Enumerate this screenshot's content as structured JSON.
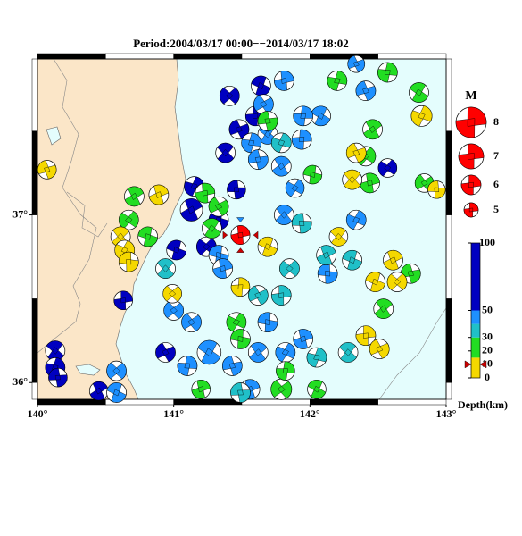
{
  "title": "Period:2004/03/17 00:00−−2014/03/17 18:02",
  "xlim": [
    140,
    143
  ],
  "ylim": [
    35.9,
    37.93
  ],
  "xticks": [
    {
      "value": 140,
      "label": "140°"
    },
    {
      "value": 141,
      "label": "141°"
    },
    {
      "value": 142,
      "label": "142°"
    },
    {
      "value": 143,
      "label": "143°"
    }
  ],
  "yticks": [
    {
      "value": 36,
      "label": "36°"
    },
    {
      "value": 37,
      "label": "37°"
    }
  ],
  "land_color": "#fbe6c8",
  "sea_color": "#e4fdfd",
  "legend": {
    "title": "M",
    "mags": [
      8,
      7,
      6,
      5
    ],
    "color": "#ff0000"
  },
  "depth_scale": {
    "label": "Depth(km)",
    "lim": [
      0,
      100
    ],
    "ticks": [
      0,
      10,
      20,
      30,
      50,
      100
    ],
    "bands": [
      {
        "from": 0,
        "to": 15,
        "color": "#f5d800"
      },
      {
        "from": 15,
        "to": 30,
        "color": "#22dd22"
      },
      {
        "from": 30,
        "to": 40,
        "color": "#20c0c8"
      },
      {
        "from": 40,
        "to": 50,
        "color": "#1e90ff"
      },
      {
        "from": 50,
        "to": 100,
        "color": "#0000c0"
      }
    ]
  },
  "main_event": {
    "lon": 141.49,
    "lat": 36.88,
    "depth": 10,
    "mag": 6.2,
    "color": "#ff0000"
  },
  "events": [
    {
      "lon": 141.41,
      "lat": 37.71,
      "depth": 65,
      "mag": 6
    },
    {
      "lon": 141.64,
      "lat": 37.77,
      "depth": 65,
      "mag": 6
    },
    {
      "lon": 141.6,
      "lat": 37.59,
      "depth": 65,
      "mag": 6
    },
    {
      "lon": 141.48,
      "lat": 37.51,
      "depth": 65,
      "mag": 6
    },
    {
      "lon": 141.38,
      "lat": 37.37,
      "depth": 65,
      "mag": 6
    },
    {
      "lon": 141.15,
      "lat": 37.17,
      "depth": 65,
      "mag": 6
    },
    {
      "lon": 141.46,
      "lat": 37.15,
      "depth": 65,
      "mag": 5.8
    },
    {
      "lon": 141.13,
      "lat": 37.03,
      "depth": 65,
      "mag": 6.5
    },
    {
      "lon": 141.24,
      "lat": 36.81,
      "depth": 65,
      "mag": 6
    },
    {
      "lon": 141.02,
      "lat": 36.79,
      "depth": 65,
      "mag": 6
    },
    {
      "lon": 140.63,
      "lat": 36.49,
      "depth": 65,
      "mag": 5.8
    },
    {
      "lon": 140.94,
      "lat": 36.18,
      "depth": 65,
      "mag": 6
    },
    {
      "lon": 140.13,
      "lat": 36.19,
      "depth": 65,
      "mag": 6
    },
    {
      "lon": 140.13,
      "lat": 36.09,
      "depth": 65,
      "mag": 6
    },
    {
      "lon": 140.15,
      "lat": 36.03,
      "depth": 65,
      "mag": 5.8
    },
    {
      "lon": 140.45,
      "lat": 35.95,
      "depth": 65,
      "mag": 5.8
    },
    {
      "lon": 142.57,
      "lat": 37.28,
      "depth": 65,
      "mag": 5.8
    },
    {
      "lon": 141.33,
      "lat": 36.97,
      "depth": 65,
      "mag": 6
    },
    {
      "lon": 141.81,
      "lat": 37.8,
      "depth": 45,
      "mag": 6
    },
    {
      "lon": 141.66,
      "lat": 37.66,
      "depth": 45,
      "mag": 6
    },
    {
      "lon": 141.69,
      "lat": 37.48,
      "depth": 45,
      "mag": 6
    },
    {
      "lon": 141.57,
      "lat": 37.43,
      "depth": 45,
      "mag": 6
    },
    {
      "lon": 141.62,
      "lat": 37.33,
      "depth": 45,
      "mag": 6
    },
    {
      "lon": 141.79,
      "lat": 37.29,
      "depth": 45,
      "mag": 6
    },
    {
      "lon": 141.89,
      "lat": 37.16,
      "depth": 45,
      "mag": 5.8
    },
    {
      "lon": 141.33,
      "lat": 36.76,
      "depth": 45,
      "mag": 6
    },
    {
      "lon": 141.36,
      "lat": 36.68,
      "depth": 45,
      "mag": 6
    },
    {
      "lon": 141.13,
      "lat": 36.36,
      "depth": 45,
      "mag": 6
    },
    {
      "lon": 141.26,
      "lat": 36.18,
      "depth": 45,
      "mag": 6.8
    },
    {
      "lon": 141.1,
      "lat": 36.1,
      "depth": 45,
      "mag": 6
    },
    {
      "lon": 141.43,
      "lat": 36.1,
      "depth": 45,
      "mag": 6
    },
    {
      "lon": 141.62,
      "lat": 36.18,
      "depth": 45,
      "mag": 6
    },
    {
      "lon": 141.82,
      "lat": 36.18,
      "depth": 45,
      "mag": 6
    },
    {
      "lon": 141.69,
      "lat": 36.36,
      "depth": 45,
      "mag": 6
    },
    {
      "lon": 141.95,
      "lat": 36.26,
      "depth": 45,
      "mag": 6
    },
    {
      "lon": 141.0,
      "lat": 36.43,
      "depth": 45,
      "mag": 6
    },
    {
      "lon": 142.08,
      "lat": 37.59,
      "depth": 45,
      "mag": 6
    },
    {
      "lon": 141.95,
      "lat": 37.59,
      "depth": 45,
      "mag": 6
    },
    {
      "lon": 142.41,
      "lat": 37.74,
      "depth": 45,
      "mag": 6
    },
    {
      "lon": 141.81,
      "lat": 37.0,
      "depth": 45,
      "mag": 6
    },
    {
      "lon": 142.34,
      "lat": 36.97,
      "depth": 45,
      "mag": 6
    },
    {
      "lon": 142.13,
      "lat": 36.65,
      "depth": 45,
      "mag": 6
    },
    {
      "lon": 141.56,
      "lat": 35.96,
      "depth": 45,
      "mag": 6
    },
    {
      "lon": 140.58,
      "lat": 36.07,
      "depth": 45,
      "mag": 6
    },
    {
      "lon": 140.58,
      "lat": 35.94,
      "depth": 45,
      "mag": 6
    },
    {
      "lon": 141.94,
      "lat": 37.45,
      "depth": 45,
      "mag": 6
    },
    {
      "lon": 142.34,
      "lat": 37.9,
      "depth": 45,
      "mag": 5.5
    },
    {
      "lon": 140.94,
      "lat": 36.68,
      "depth": 35,
      "mag": 6
    },
    {
      "lon": 141.79,
      "lat": 37.43,
      "depth": 35,
      "mag": 6
    },
    {
      "lon": 141.94,
      "lat": 36.95,
      "depth": 35,
      "mag": 6
    },
    {
      "lon": 142.12,
      "lat": 36.76,
      "depth": 35,
      "mag": 6
    },
    {
      "lon": 141.85,
      "lat": 36.68,
      "depth": 35,
      "mag": 6
    },
    {
      "lon": 142.31,
      "lat": 36.73,
      "depth": 35,
      "mag": 6
    },
    {
      "lon": 141.79,
      "lat": 36.52,
      "depth": 35,
      "mag": 6
    },
    {
      "lon": 141.62,
      "lat": 36.52,
      "depth": 35,
      "mag": 6
    },
    {
      "lon": 142.28,
      "lat": 36.18,
      "depth": 35,
      "mag": 6
    },
    {
      "lon": 142.05,
      "lat": 36.15,
      "depth": 35,
      "mag": 6
    },
    {
      "lon": 141.49,
      "lat": 35.94,
      "depth": 35,
      "mag": 6
    },
    {
      "lon": 140.71,
      "lat": 37.11,
      "depth": 22,
      "mag": 6
    },
    {
      "lon": 140.67,
      "lat": 36.97,
      "depth": 22,
      "mag": 6
    },
    {
      "lon": 140.81,
      "lat": 36.87,
      "depth": 22,
      "mag": 6
    },
    {
      "lon": 141.23,
      "lat": 37.13,
      "depth": 22,
      "mag": 6
    },
    {
      "lon": 141.33,
      "lat": 37.05,
      "depth": 22,
      "mag": 6
    },
    {
      "lon": 141.28,
      "lat": 36.92,
      "depth": 22,
      "mag": 6
    },
    {
      "lon": 142.2,
      "lat": 37.8,
      "depth": 22,
      "mag": 6
    },
    {
      "lon": 141.69,
      "lat": 37.56,
      "depth": 22,
      "mag": 6
    },
    {
      "lon": 142.46,
      "lat": 37.51,
      "depth": 22,
      "mag": 6
    },
    {
      "lon": 142.41,
      "lat": 37.35,
      "depth": 22,
      "mag": 6
    },
    {
      "lon": 142.02,
      "lat": 37.24,
      "depth": 22,
      "mag": 5.8
    },
    {
      "lon": 142.44,
      "lat": 37.19,
      "depth": 22,
      "mag": 6
    },
    {
      "lon": 142.84,
      "lat": 37.19,
      "depth": 22,
      "mag": 5.8
    },
    {
      "lon": 142.8,
      "lat": 37.73,
      "depth": 22,
      "mag": 6
    },
    {
      "lon": 142.57,
      "lat": 37.85,
      "depth": 22,
      "mag": 6
    },
    {
      "lon": 142.74,
      "lat": 36.65,
      "depth": 22,
      "mag": 6
    },
    {
      "lon": 142.54,
      "lat": 36.44,
      "depth": 22,
      "mag": 6
    },
    {
      "lon": 141.46,
      "lat": 36.36,
      "depth": 22,
      "mag": 6
    },
    {
      "lon": 141.49,
      "lat": 36.26,
      "depth": 22,
      "mag": 6
    },
    {
      "lon": 141.2,
      "lat": 35.96,
      "depth": 22,
      "mag": 5.8
    },
    {
      "lon": 141.79,
      "lat": 35.96,
      "depth": 22,
      "mag": 6.2
    },
    {
      "lon": 142.05,
      "lat": 35.96,
      "depth": 22,
      "mag": 5.8
    },
    {
      "lon": 141.82,
      "lat": 36.07,
      "depth": 22,
      "mag": 5.8
    },
    {
      "lon": 140.07,
      "lat": 37.27,
      "depth": 8,
      "mag": 5.8
    },
    {
      "lon": 140.61,
      "lat": 36.87,
      "depth": 8,
      "mag": 6
    },
    {
      "lon": 140.64,
      "lat": 36.79,
      "depth": 8,
      "mag": 6
    },
    {
      "lon": 140.67,
      "lat": 36.72,
      "depth": 8,
      "mag": 6
    },
    {
      "lon": 140.89,
      "lat": 37.12,
      "depth": 8,
      "mag": 6
    },
    {
      "lon": 140.99,
      "lat": 36.53,
      "depth": 8,
      "mag": 5.8
    },
    {
      "lon": 141.69,
      "lat": 36.81,
      "depth": 8,
      "mag": 6
    },
    {
      "lon": 141.49,
      "lat": 36.57,
      "depth": 8,
      "mag": 5.8
    },
    {
      "lon": 142.34,
      "lat": 37.37,
      "depth": 8,
      "mag": 6
    },
    {
      "lon": 142.31,
      "lat": 37.21,
      "depth": 8,
      "mag": 6
    },
    {
      "lon": 142.82,
      "lat": 37.59,
      "depth": 8,
      "mag": 6.2
    },
    {
      "lon": 142.93,
      "lat": 37.15,
      "depth": 8,
      "mag": 5.6
    },
    {
      "lon": 142.61,
      "lat": 36.73,
      "depth": 8,
      "mag": 6
    },
    {
      "lon": 142.64,
      "lat": 36.6,
      "depth": 8,
      "mag": 6
    },
    {
      "lon": 142.48,
      "lat": 36.6,
      "depth": 8,
      "mag": 6
    },
    {
      "lon": 142.41,
      "lat": 36.28,
      "depth": 8,
      "mag": 6
    },
    {
      "lon": 142.51,
      "lat": 36.2,
      "depth": 8,
      "mag": 6
    },
    {
      "lon": 142.21,
      "lat": 36.87,
      "depth": 8,
      "mag": 5.8
    }
  ]
}
